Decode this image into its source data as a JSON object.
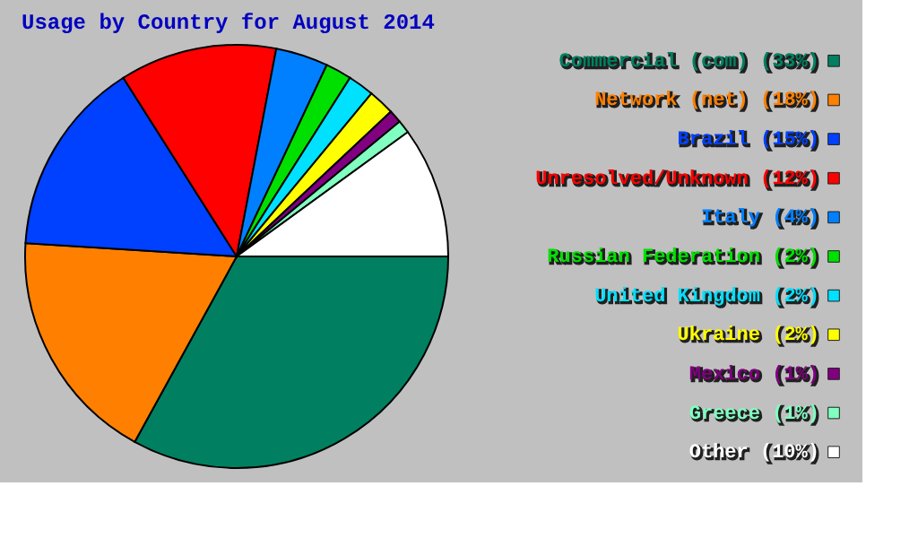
{
  "chart_data": {
    "type": "pie",
    "title": "Usage by Country for August 2014",
    "categories": [
      "Commercial (com) (33%)",
      "Network (net) (18%)",
      "Brazil (15%)",
      "Unresolved/Unknown (12%)",
      "Italy (4%)",
      "Russian Federation (2%)",
      "United Kingdom (2%)",
      "Ukraine (2%)",
      "Mexico (1%)",
      "Greece (1%)",
      "Other (10%)"
    ],
    "values": [
      33,
      18,
      15,
      12,
      4,
      2,
      2,
      2,
      1,
      1,
      10
    ],
    "colors": [
      "#008060",
      "#ff8000",
      "#0040ff",
      "#ff0000",
      "#0080ff",
      "#00e000",
      "#00e0ff",
      "#ffff00",
      "#800080",
      "#80ffc0",
      "#ffffff"
    ],
    "legend": "right"
  }
}
